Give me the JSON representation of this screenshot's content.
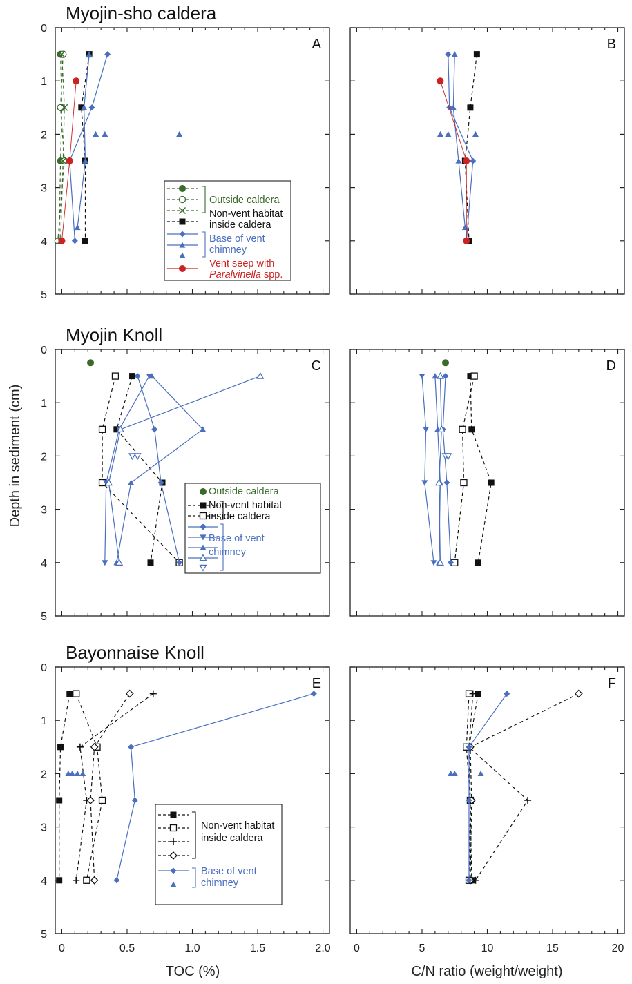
{
  "shared": {
    "ylabel": "Depth in sediment (cm)",
    "xlabel_left": "TOC (%)",
    "xlabel_right": "C/N ratio (weight/weight)",
    "y_ticks": [
      "0",
      "1",
      "2",
      "3",
      "4",
      "5"
    ],
    "x_ticks_left": [
      "0",
      "0.5",
      "1.0",
      "1.5",
      "2.0"
    ],
    "x_ticks_right": [
      "0",
      "5",
      "10",
      "15",
      "20"
    ],
    "colors": {
      "green": "#3a6b2a",
      "blue": "#4a6fc0",
      "red": "#cc2222",
      "black": "#111111"
    }
  },
  "rows": [
    {
      "title": "Myojin-sho caldera",
      "legend": {
        "lines": [
          {
            "text": "Outside caldera",
            "color": "green"
          },
          {
            "text": "Non-vent habitat",
            "color": "black"
          },
          {
            "text": " inside caldera",
            "color": "black"
          },
          {
            "text": "Base of vent",
            "color": "blue"
          },
          {
            "text": "chimney",
            "color": "blue"
          },
          {
            "text": "Vent seep with",
            "color": "red"
          },
          {
            "text": "Paralvinella",
            "color": "red",
            "italic": true,
            "suffix": " spp."
          }
        ]
      }
    },
    {
      "title": "Myojin Knoll",
      "legend": {
        "lines": [
          {
            "text": "Outside caldera",
            "color": "green"
          },
          {
            "text": "Non-vent habitat",
            "color": "black"
          },
          {
            "text": " inside caldera",
            "color": "black"
          },
          {
            "text": "Base of vent",
            "color": "blue"
          },
          {
            "text": "chimney",
            "color": "blue"
          }
        ]
      }
    },
    {
      "title": "Bayonnaise Knoll",
      "legend": {
        "lines": [
          {
            "text": "Non-vent habitat",
            "color": "black"
          },
          {
            "text": " inside caldera",
            "color": "black"
          },
          {
            "text": "Base of vent",
            "color": "blue"
          },
          {
            "text": "chimney",
            "color": "blue"
          }
        ]
      }
    }
  ],
  "chart_data": [
    {
      "panel": "A",
      "type": "line",
      "xlabel": "TOC (%)",
      "ylabel": "Depth in sediment (cm)",
      "xlim": [
        -0.05,
        2.05
      ],
      "ylim": [
        5,
        0
      ],
      "y_reversed": true,
      "series": [
        {
          "name": "Outside caldera",
          "color": "green",
          "marker": "circle-filled",
          "dash": true,
          "x": [
            -0.01,
            0.0,
            -0.01,
            -0.02
          ],
          "y": [
            0.5,
            1.5,
            2.5,
            4.0
          ]
        },
        {
          "name": "Outside caldera",
          "color": "green",
          "marker": "circle-open",
          "dash": true,
          "x": [
            0.01,
            -0.01,
            0.02,
            -0.03
          ],
          "y": [
            0.5,
            1.5,
            2.5,
            4.0
          ]
        },
        {
          "name": "Outside caldera",
          "color": "green",
          "marker": "x",
          "dash": true,
          "x": [
            0.0,
            0.02,
            0.01,
            -0.01
          ],
          "y": [
            0.5,
            1.5,
            2.5,
            4.0
          ]
        },
        {
          "name": "Non-vent habitat inside caldera",
          "color": "black",
          "marker": "square-filled",
          "dash": true,
          "x": [
            0.21,
            0.15,
            0.18,
            0.18
          ],
          "y": [
            0.5,
            1.5,
            2.5,
            4.0
          ]
        },
        {
          "name": "Base of vent chimney",
          "color": "blue",
          "marker": "diamond",
          "dash": false,
          "x": [
            0.35,
            0.23,
            0.06,
            0.1
          ],
          "y": [
            0.5,
            1.5,
            2.5,
            4.0
          ]
        },
        {
          "name": "Base of vent chimney",
          "color": "blue",
          "marker": "triangle-up",
          "dash": false,
          "x": [
            0.21,
            0.17,
            0.18,
            0.12
          ],
          "y": [
            0.5,
            1.5,
            2.5,
            3.75
          ]
        },
        {
          "name": "Base of vent chimney",
          "color": "blue",
          "marker": "triangle-up",
          "dash": false,
          "nolines": true,
          "x": [
            0.26,
            0.33,
            0.9
          ],
          "y": [
            2.0,
            2.0,
            2.0
          ]
        },
        {
          "name": "Vent seep with Paralvinella spp.",
          "color": "red",
          "marker": "circle-filled",
          "dash": false,
          "thin": true,
          "x": [
            0.11,
            0.06,
            0.0
          ],
          "y": [
            1.0,
            2.5,
            4.0
          ]
        }
      ]
    },
    {
      "panel": "B",
      "type": "line",
      "xlabel": "C/N ratio (weight/weight)",
      "ylabel": "Depth in sediment (cm)",
      "xlim": [
        -0.5,
        20.5
      ],
      "ylim": [
        5,
        0
      ],
      "y_reversed": true,
      "series": [
        {
          "name": "Non-vent habitat inside caldera",
          "color": "black",
          "marker": "square-filled",
          "dash": true,
          "x": [
            9.2,
            8.7,
            8.3,
            8.6
          ],
          "y": [
            0.5,
            1.5,
            2.5,
            4.0
          ]
        },
        {
          "name": "Base of vent chimney",
          "color": "blue",
          "marker": "diamond",
          "dash": false,
          "x": [
            7.0,
            7.1,
            8.9,
            8.4
          ],
          "y": [
            0.5,
            1.5,
            2.5,
            4.0
          ]
        },
        {
          "name": "Base of vent chimney",
          "color": "blue",
          "marker": "triangle-up",
          "dash": false,
          "x": [
            7.5,
            7.4,
            7.8,
            8.3
          ],
          "y": [
            0.5,
            1.5,
            2.5,
            3.75
          ]
        },
        {
          "name": "Base of vent chimney",
          "color": "blue",
          "marker": "triangle-up",
          "dash": false,
          "nolines": true,
          "x": [
            6.4,
            7.0,
            9.1
          ],
          "y": [
            2.0,
            2.0,
            2.0
          ]
        },
        {
          "name": "Vent seep with Paralvinella spp.",
          "color": "red",
          "marker": "circle-filled",
          "dash": false,
          "thin": true,
          "x": [
            6.4,
            8.4,
            8.4
          ],
          "y": [
            1.0,
            2.5,
            4.0
          ]
        }
      ]
    },
    {
      "panel": "C",
      "type": "line",
      "xlabel": "TOC (%)",
      "ylabel": "Depth in sediment (cm)",
      "xlim": [
        -0.05,
        2.05
      ],
      "ylim": [
        5,
        0
      ],
      "y_reversed": true,
      "series": [
        {
          "name": "Outside caldera",
          "color": "green",
          "marker": "circle-filled",
          "dash": false,
          "nolines": true,
          "x": [
            0.22
          ],
          "y": [
            0.25
          ]
        },
        {
          "name": "Non-vent habitat inside caldera",
          "color": "black",
          "marker": "square-filled",
          "dash": true,
          "x": [
            0.54,
            0.42,
            0.77,
            0.68
          ],
          "y": [
            0.5,
            1.5,
            2.5,
            4.0
          ]
        },
        {
          "name": "Non-vent habitat inside caldera",
          "color": "black",
          "marker": "square-open",
          "dash": true,
          "x": [
            0.41,
            0.31,
            0.31,
            0.9
          ],
          "y": [
            0.5,
            1.5,
            2.5,
            4.0
          ]
        },
        {
          "name": "Base of vent chimney",
          "color": "blue",
          "marker": "diamond",
          "dash": false,
          "x": [
            0.58,
            0.71,
            0.76,
            0.9
          ],
          "y": [
            0.5,
            1.5,
            2.5,
            4.0
          ]
        },
        {
          "name": "Base of vent chimney",
          "color": "blue",
          "marker": "triangle-down",
          "dash": false,
          "x": [
            0.67,
            0.44,
            0.34,
            0.33
          ],
          "y": [
            0.5,
            1.5,
            2.5,
            4.0
          ]
        },
        {
          "name": "Base of vent chimney",
          "color": "blue",
          "marker": "triangle-up",
          "dash": false,
          "x": [
            0.69,
            1.08,
            0.53,
            0.42
          ],
          "y": [
            0.5,
            1.5,
            2.5,
            4.0
          ]
        },
        {
          "name": "Base of vent chimney",
          "color": "blue",
          "marker": "triangle-up-open",
          "dash": false,
          "x": [
            1.52,
            0.45,
            0.36,
            0.44
          ],
          "y": [
            0.5,
            1.5,
            2.5,
            4.0
          ]
        },
        {
          "name": "Base of vent chimney",
          "color": "blue",
          "marker": "triangle-down-open",
          "dash": false,
          "nolines": true,
          "x": [
            0.54,
            0.58
          ],
          "y": [
            2.0,
            2.0
          ]
        }
      ]
    },
    {
      "panel": "D",
      "type": "line",
      "xlabel": "C/N ratio (weight/weight)",
      "ylabel": "Depth in sediment (cm)",
      "xlim": [
        -0.5,
        20.5
      ],
      "ylim": [
        5,
        0
      ],
      "y_reversed": true,
      "series": [
        {
          "name": "Outside caldera",
          "color": "green",
          "marker": "circle-filled",
          "dash": false,
          "nolines": true,
          "x": [
            6.8
          ],
          "y": [
            0.25
          ]
        },
        {
          "name": "Non-vent habitat inside caldera",
          "color": "black",
          "marker": "square-filled",
          "dash": true,
          "x": [
            8.7,
            8.8,
            10.3,
            9.3
          ],
          "y": [
            0.5,
            1.5,
            2.5,
            4.0
          ]
        },
        {
          "name": "Non-vent habitat inside caldera",
          "color": "black",
          "marker": "square-open",
          "dash": true,
          "x": [
            9.0,
            8.1,
            8.2,
            7.5
          ],
          "y": [
            0.5,
            1.5,
            2.5,
            4.0
          ]
        },
        {
          "name": "Base of vent chimney",
          "color": "blue",
          "marker": "diamond",
          "dash": false,
          "x": [
            6.8,
            6.6,
            6.9,
            7.2
          ],
          "y": [
            0.5,
            1.5,
            2.5,
            4.0
          ]
        },
        {
          "name": "Base of vent chimney",
          "color": "blue",
          "marker": "triangle-down",
          "dash": false,
          "x": [
            5.0,
            5.3,
            5.2,
            5.9
          ],
          "y": [
            0.5,
            1.5,
            2.5,
            4.0
          ]
        },
        {
          "name": "Base of vent chimney",
          "color": "blue",
          "marker": "triangle-up",
          "dash": false,
          "x": [
            6.0,
            6.2,
            6.4,
            6.3
          ],
          "y": [
            0.5,
            1.5,
            2.5,
            4.0
          ]
        },
        {
          "name": "Base of vent chimney",
          "color": "blue",
          "marker": "triangle-up-open",
          "dash": false,
          "x": [
            6.4,
            6.5,
            6.3,
            6.4
          ],
          "y": [
            0.5,
            1.5,
            2.5,
            4.0
          ]
        },
        {
          "name": "Base of vent chimney",
          "color": "blue",
          "marker": "triangle-down-open",
          "dash": false,
          "nolines": true,
          "x": [
            6.8,
            7.0
          ],
          "y": [
            2.0,
            2.0
          ]
        }
      ]
    },
    {
      "panel": "E",
      "type": "line",
      "xlabel": "TOC (%)",
      "ylabel": "Depth in sediment (cm)",
      "xlim": [
        -0.05,
        2.05
      ],
      "ylim": [
        5,
        0
      ],
      "y_reversed": true,
      "series": [
        {
          "name": "Non-vent habitat inside caldera",
          "color": "black",
          "marker": "square-filled",
          "dash": true,
          "x": [
            0.06,
            -0.01,
            -0.02,
            -0.02
          ],
          "y": [
            0.5,
            1.5,
            2.5,
            4.0
          ]
        },
        {
          "name": "Non-vent habitat inside caldera",
          "color": "black",
          "marker": "square-open",
          "dash": true,
          "x": [
            0.11,
            0.27,
            0.31,
            0.19
          ],
          "y": [
            0.5,
            1.5,
            2.5,
            4.0
          ]
        },
        {
          "name": "Non-vent habitat inside caldera",
          "color": "black",
          "marker": "plus",
          "dash": true,
          "x": [
            0.7,
            0.14,
            0.19,
            0.11
          ],
          "y": [
            0.5,
            1.5,
            2.5,
            4.0
          ]
        },
        {
          "name": "Non-vent habitat inside caldera",
          "color": "black",
          "marker": "diamond-open",
          "dash": true,
          "x": [
            0.52,
            0.25,
            0.22,
            0.25
          ],
          "y": [
            0.5,
            1.5,
            2.5,
            4.0
          ]
        },
        {
          "name": "Base of vent chimney",
          "color": "blue",
          "marker": "diamond",
          "dash": false,
          "x": [
            1.93,
            0.53,
            0.56,
            0.42
          ],
          "y": [
            0.5,
            1.5,
            2.5,
            4.0
          ]
        },
        {
          "name": "Base of vent chimney",
          "color": "blue",
          "marker": "triangle-up",
          "dash": false,
          "nolines": true,
          "x": [
            0.05,
            0.08,
            0.12,
            0.16
          ],
          "y": [
            2.0,
            2.0,
            2.0,
            2.0
          ]
        }
      ]
    },
    {
      "panel": "F",
      "type": "line",
      "xlabel": "C/N ratio (weight/weight)",
      "ylabel": "Depth in sediment (cm)",
      "xlim": [
        -0.5,
        20.5
      ],
      "ylim": [
        5,
        0
      ],
      "y_reversed": true,
      "series": [
        {
          "name": "Non-vent habitat inside caldera",
          "color": "black",
          "marker": "square-filled",
          "dash": true,
          "x": [
            9.3,
            8.6,
            8.7,
            8.8
          ],
          "y": [
            0.5,
            1.5,
            2.5,
            4.0
          ]
        },
        {
          "name": "Non-vent habitat inside caldera",
          "color": "black",
          "marker": "square-open",
          "dash": true,
          "x": [
            8.6,
            8.4,
            8.7,
            8.6
          ],
          "y": [
            0.5,
            1.5,
            2.5,
            4.0
          ]
        },
        {
          "name": "Non-vent habitat inside caldera",
          "color": "black",
          "marker": "plus",
          "dash": true,
          "x": [
            8.9,
            8.6,
            13.1,
            9.1
          ],
          "y": [
            0.5,
            1.5,
            2.5,
            4.0
          ]
        },
        {
          "name": "Non-vent habitat inside caldera",
          "color": "black",
          "marker": "diamond-open",
          "dash": true,
          "x": [
            17.0,
            8.7,
            8.8,
            8.7
          ],
          "y": [
            0.5,
            1.5,
            2.5,
            4.0
          ]
        },
        {
          "name": "Base of vent chimney",
          "color": "blue",
          "marker": "diamond",
          "dash": false,
          "x": [
            11.5,
            8.6,
            8.6,
            8.6
          ],
          "y": [
            0.5,
            1.5,
            2.5,
            4.0
          ]
        },
        {
          "name": "Base of vent chimney",
          "color": "blue",
          "marker": "triangle-up",
          "dash": false,
          "nolines": true,
          "x": [
            7.2,
            7.5,
            9.5
          ],
          "y": [
            2.0,
            2.0,
            2.0
          ]
        }
      ]
    }
  ]
}
